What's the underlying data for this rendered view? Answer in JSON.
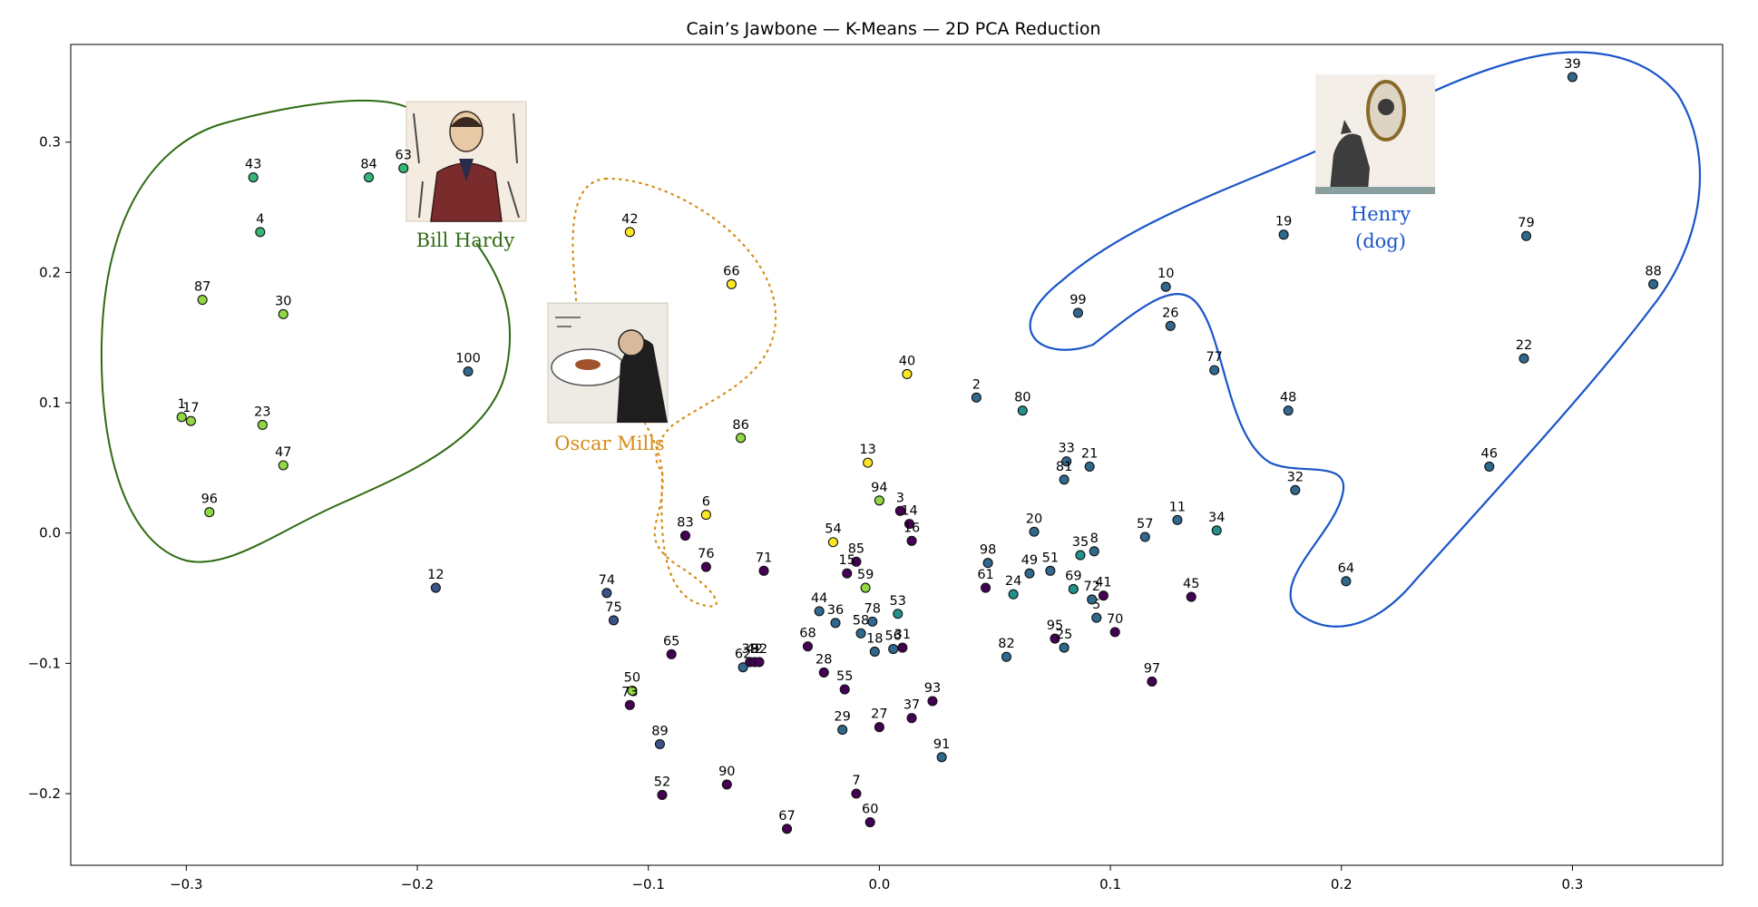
{
  "chart_data": {
    "type": "scatter",
    "title": "Cain’s Jawbone — K-Means — 2D PCA Reduction",
    "xlabel": "",
    "ylabel": "",
    "xlim": [
      -0.35,
      0.365
    ],
    "ylim": [
      -0.255,
      0.375
    ],
    "xticks": [
      -0.3,
      -0.2,
      -0.1,
      0.0,
      0.1,
      0.2,
      0.3
    ],
    "xtick_labels": [
      "−0.3",
      "−0.2",
      "−0.1",
      "0.0",
      "0.1",
      "0.2",
      "0.3"
    ],
    "yticks": [
      -0.2,
      -0.1,
      0.0,
      0.1,
      0.2,
      0.3
    ],
    "ytick_labels": [
      "−0.2",
      "−0.1",
      "0.0",
      "0.1",
      "0.2",
      "0.3"
    ],
    "grid": false,
    "cluster_colors": {
      "c0": "#440154",
      "c1": "#3b528b",
      "c2": "#31688e",
      "c3": "#21918c",
      "c4": "#35b779",
      "c5": "#90d743",
      "c6": "#fde725"
    },
    "points": [
      {
        "label": "39",
        "x": 0.3,
        "y": 0.35,
        "c": "c2"
      },
      {
        "label": "88",
        "x": 0.335,
        "y": 0.191,
        "c": "c2"
      },
      {
        "label": "79",
        "x": 0.28,
        "y": 0.228,
        "c": "c2"
      },
      {
        "label": "22",
        "x": 0.279,
        "y": 0.134,
        "c": "c2"
      },
      {
        "label": "46",
        "x": 0.264,
        "y": 0.051,
        "c": "c2"
      },
      {
        "label": "19",
        "x": 0.175,
        "y": 0.229,
        "c": "c2"
      },
      {
        "label": "10",
        "x": 0.124,
        "y": 0.189,
        "c": "c2"
      },
      {
        "label": "26",
        "x": 0.126,
        "y": 0.159,
        "c": "c2"
      },
      {
        "label": "99",
        "x": 0.086,
        "y": 0.169,
        "c": "c2"
      },
      {
        "label": "77",
        "x": 0.145,
        "y": 0.125,
        "c": "c2"
      },
      {
        "label": "48",
        "x": 0.177,
        "y": 0.094,
        "c": "c2"
      },
      {
        "label": "32",
        "x": 0.18,
        "y": 0.033,
        "c": "c2"
      },
      {
        "label": "64",
        "x": 0.202,
        "y": -0.037,
        "c": "c2"
      },
      {
        "label": "11",
        "x": 0.129,
        "y": 0.01,
        "c": "c2"
      },
      {
        "label": "34",
        "x": 0.146,
        "y": 0.002,
        "c": "c3"
      },
      {
        "label": "57",
        "x": 0.115,
        "y": -0.003,
        "c": "c2"
      },
      {
        "label": "45",
        "x": 0.135,
        "y": -0.049,
        "c": "c0"
      },
      {
        "label": "97",
        "x": 0.118,
        "y": -0.114,
        "c": "c0"
      },
      {
        "label": "70",
        "x": 0.102,
        "y": -0.076,
        "c": "c0"
      },
      {
        "label": "5",
        "x": 0.094,
        "y": -0.065,
        "c": "c2"
      },
      {
        "label": "72",
        "x": 0.092,
        "y": -0.051,
        "c": "c2"
      },
      {
        "label": "41",
        "x": 0.097,
        "y": -0.048,
        "c": "c0"
      },
      {
        "label": "69",
        "x": 0.084,
        "y": -0.043,
        "c": "c3"
      },
      {
        "label": "95",
        "x": 0.076,
        "y": -0.081,
        "c": "c0"
      },
      {
        "label": "25",
        "x": 0.08,
        "y": -0.088,
        "c": "c2"
      },
      {
        "label": "35",
        "x": 0.087,
        "y": -0.017,
        "c": "c3"
      },
      {
        "label": "8",
        "x": 0.093,
        "y": -0.014,
        "c": "c2"
      },
      {
        "label": "51",
        "x": 0.074,
        "y": -0.029,
        "c": "c2"
      },
      {
        "label": "49",
        "x": 0.065,
        "y": -0.031,
        "c": "c2"
      },
      {
        "label": "20",
        "x": 0.067,
        "y": 0.001,
        "c": "c2"
      },
      {
        "label": "33",
        "x": 0.081,
        "y": 0.055,
        "c": "c2"
      },
      {
        "label": "81",
        "x": 0.08,
        "y": 0.041,
        "c": "c2"
      },
      {
        "label": "21",
        "x": 0.091,
        "y": 0.051,
        "c": "c2"
      },
      {
        "label": "98",
        "x": 0.047,
        "y": -0.023,
        "c": "c2"
      },
      {
        "label": "61",
        "x": 0.046,
        "y": -0.042,
        "c": "c0"
      },
      {
        "label": "24",
        "x": 0.058,
        "y": -0.047,
        "c": "c3"
      },
      {
        "label": "82",
        "x": 0.055,
        "y": -0.095,
        "c": "c2"
      },
      {
        "label": "80",
        "x": 0.062,
        "y": 0.094,
        "c": "c3"
      },
      {
        "label": "2",
        "x": 0.042,
        "y": 0.104,
        "c": "c2"
      },
      {
        "label": "40",
        "x": 0.012,
        "y": 0.122,
        "c": "c6"
      },
      {
        "label": "13",
        "x": -0.005,
        "y": 0.054,
        "c": "c6"
      },
      {
        "label": "94",
        "x": 0.0,
        "y": 0.025,
        "c": "c5"
      },
      {
        "label": "3",
        "x": 0.009,
        "y": 0.017,
        "c": "c0"
      },
      {
        "label": "14",
        "x": 0.013,
        "y": 0.007,
        "c": "c0"
      },
      {
        "label": "16",
        "x": 0.014,
        "y": -0.006,
        "c": "c0"
      },
      {
        "label": "54",
        "x": -0.02,
        "y": -0.007,
        "c": "c6"
      },
      {
        "label": "85",
        "x": -0.01,
        "y": -0.022,
        "c": "c0"
      },
      {
        "label": "15",
        "x": -0.014,
        "y": -0.031,
        "c": "c0"
      },
      {
        "label": "59",
        "x": -0.006,
        "y": -0.042,
        "c": "c5"
      },
      {
        "label": "53",
        "x": 0.008,
        "y": -0.062,
        "c": "c3"
      },
      {
        "label": "78",
        "x": -0.003,
        "y": -0.068,
        "c": "c2"
      },
      {
        "label": "58",
        "x": -0.008,
        "y": -0.077,
        "c": "c2"
      },
      {
        "label": "18",
        "x": -0.002,
        "y": -0.091,
        "c": "c2"
      },
      {
        "label": "56",
        "x": 0.006,
        "y": -0.089,
        "c": "c2"
      },
      {
        "label": "31",
        "x": 0.01,
        "y": -0.088,
        "c": "c0"
      },
      {
        "label": "36",
        "x": -0.019,
        "y": -0.069,
        "c": "c2"
      },
      {
        "label": "44",
        "x": -0.026,
        "y": -0.06,
        "c": "c2"
      },
      {
        "label": "68",
        "x": -0.031,
        "y": -0.087,
        "c": "c0"
      },
      {
        "label": "28",
        "x": -0.024,
        "y": -0.107,
        "c": "c0"
      },
      {
        "label": "55",
        "x": -0.015,
        "y": -0.12,
        "c": "c0"
      },
      {
        "label": "29",
        "x": -0.016,
        "y": -0.151,
        "c": "c2"
      },
      {
        "label": "27",
        "x": 0.0,
        "y": -0.149,
        "c": "c0"
      },
      {
        "label": "37",
        "x": 0.014,
        "y": -0.142,
        "c": "c0"
      },
      {
        "label": "93",
        "x": 0.023,
        "y": -0.129,
        "c": "c0"
      },
      {
        "label": "91",
        "x": 0.027,
        "y": -0.172,
        "c": "c2"
      },
      {
        "label": "7",
        "x": -0.01,
        "y": -0.2,
        "c": "c0"
      },
      {
        "label": "60",
        "x": -0.004,
        "y": -0.222,
        "c": "c0"
      },
      {
        "label": "67",
        "x": -0.04,
        "y": -0.227,
        "c": "c0"
      },
      {
        "label": "90",
        "x": -0.066,
        "y": -0.193,
        "c": "c0"
      },
      {
        "label": "52",
        "x": -0.094,
        "y": -0.201,
        "c": "c0"
      },
      {
        "label": "89",
        "x": -0.095,
        "y": -0.162,
        "c": "c1"
      },
      {
        "label": "65",
        "x": -0.09,
        "y": -0.093,
        "c": "c0"
      },
      {
        "label": "62",
        "x": -0.059,
        "y": -0.103,
        "c": "c2"
      },
      {
        "label": "38",
        "x": -0.056,
        "y": -0.099,
        "c": "c0"
      },
      {
        "label": "42",
        "x": -0.054,
        "y": -0.099,
        "c": "c0"
      },
      {
        "label": "92",
        "x": -0.052,
        "y": -0.099,
        "c": "c0"
      },
      {
        "label": "71",
        "x": -0.05,
        "y": -0.029,
        "c": "c0"
      },
      {
        "label": "76",
        "x": -0.075,
        "y": -0.026,
        "c": "c0"
      },
      {
        "label": "83",
        "x": -0.084,
        "y": -0.002,
        "c": "c0"
      },
      {
        "label": "6",
        "x": -0.075,
        "y": 0.014,
        "c": "c6"
      },
      {
        "label": "86",
        "x": -0.06,
        "y": 0.073,
        "c": "c5"
      },
      {
        "label": "66",
        "x": -0.064,
        "y": 0.191,
        "c": "c6"
      },
      {
        "label": "42",
        "x": -0.108,
        "y": 0.231,
        "c": "c6"
      },
      {
        "label": "74",
        "x": -0.118,
        "y": -0.046,
        "c": "c1"
      },
      {
        "label": "75",
        "x": -0.115,
        "y": -0.067,
        "c": "c1"
      },
      {
        "label": "50",
        "x": -0.107,
        "y": -0.121,
        "c": "c5"
      },
      {
        "label": "73",
        "x": -0.108,
        "y": -0.132,
        "c": "c0"
      },
      {
        "label": "12",
        "x": -0.192,
        "y": -0.042,
        "c": "c1"
      },
      {
        "label": "100",
        "x": -0.178,
        "y": 0.124,
        "c": "c2"
      },
      {
        "label": "63",
        "x": -0.206,
        "y": 0.28,
        "c": "c4"
      },
      {
        "label": "84",
        "x": -0.221,
        "y": 0.273,
        "c": "c4"
      },
      {
        "label": "43",
        "x": -0.271,
        "y": 0.273,
        "c": "c4"
      },
      {
        "label": "4",
        "x": -0.268,
        "y": 0.231,
        "c": "c4"
      },
      {
        "label": "87",
        "x": -0.293,
        "y": 0.179,
        "c": "c5"
      },
      {
        "label": "30",
        "x": -0.258,
        "y": 0.168,
        "c": "c5"
      },
      {
        "label": "1",
        "x": -0.302,
        "y": 0.089,
        "c": "c5"
      },
      {
        "label": "17",
        "x": -0.298,
        "y": 0.086,
        "c": "c5"
      },
      {
        "label": "23",
        "x": -0.267,
        "y": 0.083,
        "c": "c5"
      },
      {
        "label": "47",
        "x": -0.258,
        "y": 0.052,
        "c": "c5"
      },
      {
        "label": "96",
        "x": -0.29,
        "y": 0.016,
        "c": "c5"
      }
    ],
    "annotations": [
      {
        "label": "Bill Hardy",
        "color": "#2e6b12"
      },
      {
        "label": "Oscar Mills",
        "color": "#d68b15"
      },
      {
        "label": "Henry",
        "label2": "(dog)",
        "color": "#1a55c8"
      }
    ]
  }
}
